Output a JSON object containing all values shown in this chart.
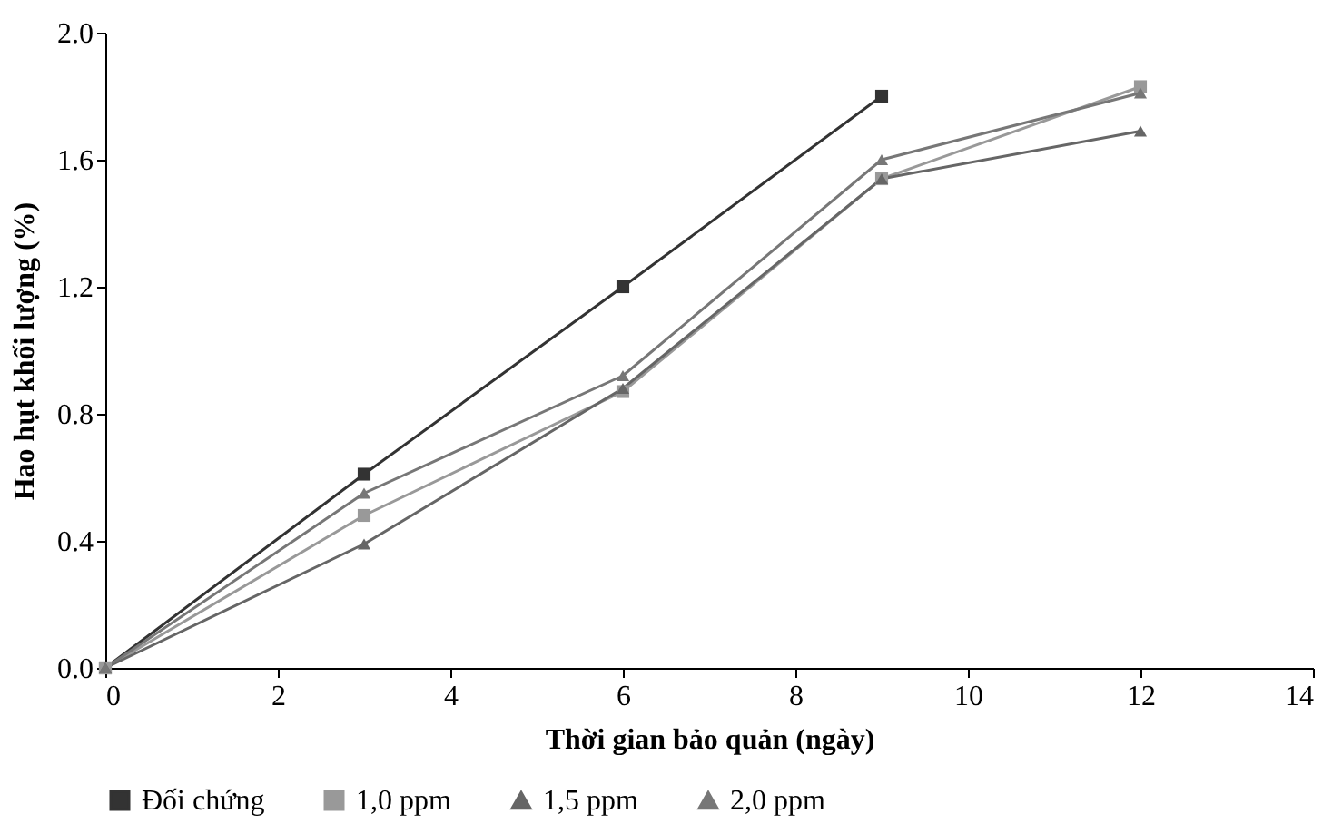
{
  "chart_data": {
    "type": "line",
    "xlabel": "Thời gian bảo quản (ngày)",
    "ylabel": "Hao hụt khối lượng (%)",
    "xlim": [
      0,
      14
    ],
    "xticks": [
      0,
      2,
      4,
      6,
      8,
      10,
      12,
      14
    ],
    "ylim": [
      0,
      2.0
    ],
    "yticks": [
      {
        "value": 0,
        "label": "0.0"
      },
      0.4,
      0.8,
      1.2,
      1.6,
      {
        "value": 2,
        "label": "2.0"
      }
    ],
    "grid": false,
    "legend": "bottom",
    "line_style": "solid",
    "series": [
      {
        "name": "Đối chứng",
        "color": "#333333",
        "marker": "square",
        "x": [
          0,
          3,
          6,
          9
        ],
        "values": [
          0,
          0.61,
          1.2,
          1.8
        ]
      },
      {
        "name": "1,0 ppm",
        "color": "#999999",
        "marker": "square",
        "x": [
          0,
          3,
          6,
          9,
          12
        ],
        "values": [
          0,
          0.48,
          0.87,
          1.54,
          1.83
        ]
      },
      {
        "name": "1,5 ppm",
        "color": "#666666",
        "marker": "triangle",
        "x": [
          0,
          3,
          6,
          9,
          12
        ],
        "values": [
          0,
          0.39,
          0.88,
          1.54,
          1.69
        ]
      },
      {
        "name": "2,0 ppm",
        "color": "#777777",
        "marker": "triangle",
        "x": [
          0,
          3,
          6,
          9,
          12
        ],
        "values": [
          0,
          0.55,
          0.92,
          1.6,
          1.81
        ]
      }
    ]
  }
}
